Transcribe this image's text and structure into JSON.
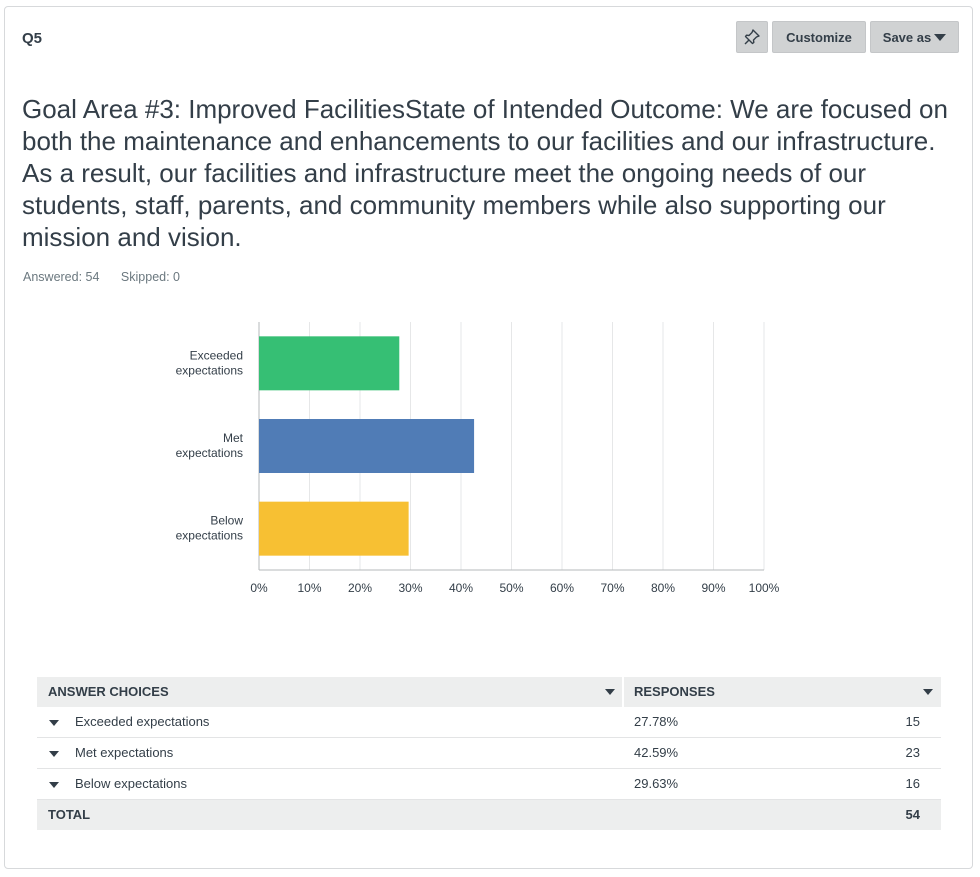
{
  "question": {
    "number": "Q5",
    "title": "Goal Area #3: Improved FacilitiesState of Intended Outcome: We are focused on both the maintenance and enhancements to our facilities and our infrastructure. As a result, our facilities and infrastructure meet the ongoing needs of our students, staff, parents, and community members while also supporting our mission and vision.",
    "answered": "Answered: 54",
    "skipped": "Skipped: 0"
  },
  "toolbar": {
    "pin_icon": "pin-icon",
    "customize_label": "Customize",
    "save_as_label": "Save as"
  },
  "chart_data": {
    "type": "bar",
    "orientation": "horizontal",
    "categories": [
      "Exceeded expectations",
      "Met expectations",
      "Below expectations"
    ],
    "category_lines": [
      [
        "Exceeded",
        "expectations"
      ],
      [
        "Met",
        "expectations"
      ],
      [
        "Below",
        "expectations"
      ]
    ],
    "values": [
      27.78,
      42.59,
      29.63
    ],
    "colors": [
      "#36bf74",
      "#507cb6",
      "#f7c033"
    ],
    "xlim": [
      0,
      100
    ],
    "xticks": [
      "0%",
      "10%",
      "20%",
      "30%",
      "40%",
      "50%",
      "60%",
      "70%",
      "80%",
      "90%",
      "100%"
    ],
    "grid": true,
    "title": "",
    "xlabel": "",
    "ylabel": ""
  },
  "table": {
    "headers": {
      "choices": "ANSWER CHOICES",
      "responses": "RESPONSES"
    },
    "rows": [
      {
        "choice": "Exceeded expectations",
        "percent": "27.78%",
        "count": "15"
      },
      {
        "choice": "Met expectations",
        "percent": "42.59%",
        "count": "23"
      },
      {
        "choice": "Below expectations",
        "percent": "29.63%",
        "count": "16"
      }
    ],
    "total": {
      "label": "TOTAL",
      "count": "54"
    }
  }
}
